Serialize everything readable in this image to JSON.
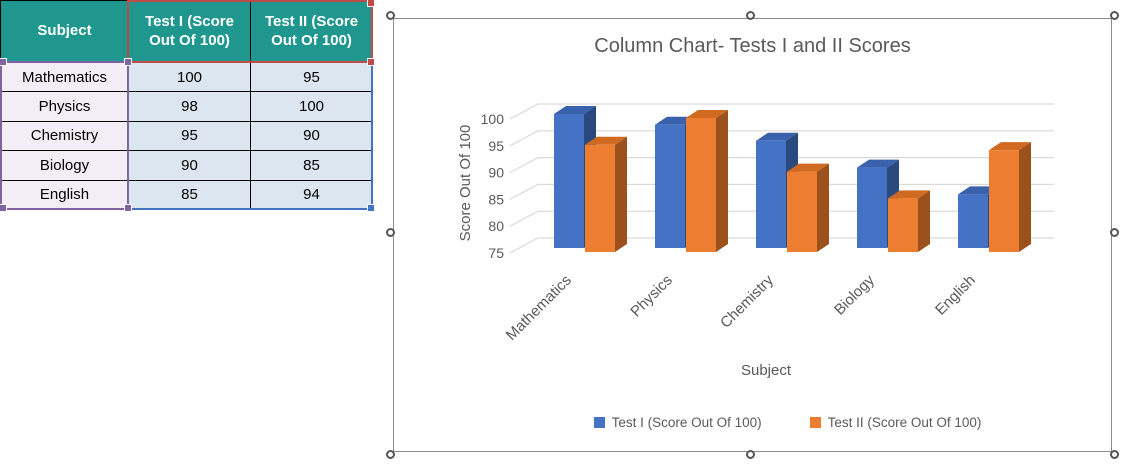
{
  "table": {
    "header": [
      "Subject",
      "Test I (Score Out Of 100)",
      "Test II (Score Out Of 100)"
    ],
    "rows": [
      [
        "Mathematics",
        "100",
        "95"
      ],
      [
        "Physics",
        "98",
        "100"
      ],
      [
        "Chemistry",
        "95",
        "90"
      ],
      [
        "Biology",
        "90",
        "85"
      ],
      [
        "English",
        "85",
        "94"
      ]
    ]
  },
  "chart_data": {
    "type": "bar",
    "variant": "3d-clustered-column",
    "title": "Column Chart- Tests I and II Scores",
    "xlabel": "Subject",
    "ylabel": "Score Out Of 100",
    "categories": [
      "Mathematics",
      "Physics",
      "Chemistry",
      "Biology",
      "English"
    ],
    "series": [
      {
        "name": "Test I (Score Out Of 100)",
        "color": "#4472C4",
        "values": [
          100,
          98,
          95,
          90,
          85
        ]
      },
      {
        "name": "Test II (Score Out Of 100)",
        "color": "#ED7D31",
        "values": [
          95,
          100,
          90,
          85,
          94
        ]
      }
    ],
    "ylim": [
      75,
      105
    ],
    "yticks": [
      75,
      80,
      85,
      90,
      95,
      100
    ],
    "grid": true,
    "legend_position": "bottom"
  },
  "colors": {
    "header_bg": "#1F978E",
    "subject_cell_bg": "#F3EEF6",
    "value_cell_bg": "#DCE6F1",
    "selection_red": "#BE4B48",
    "selection_purple": "#8064A2",
    "selection_blue": "#4472C4",
    "series1_front": "#4472C4",
    "series1_top": "#3A62AC",
    "series1_side": "#29497F",
    "series2_front": "#ED7D31",
    "series2_top": "#D06A20",
    "series2_side": "#9C501C",
    "gridline": "#D9D9D9",
    "chart_text": "#595959",
    "frame": "#8A8A8A"
  }
}
